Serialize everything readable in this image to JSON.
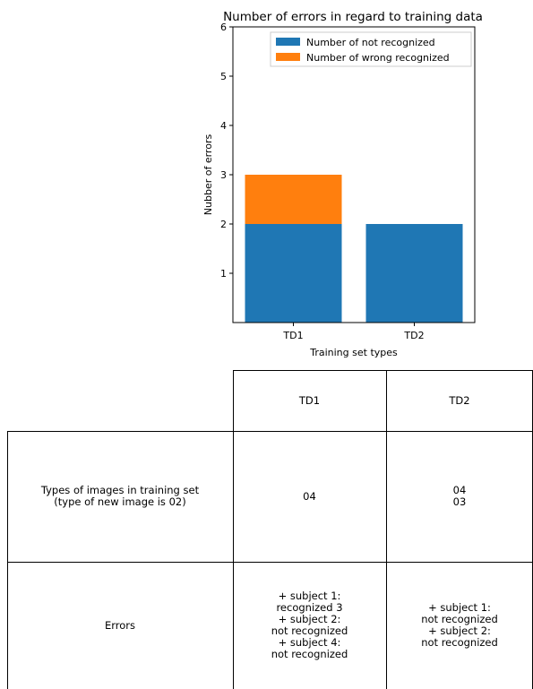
{
  "chart_data": {
    "type": "bar",
    "stacked": true,
    "title": "Number of errors in regard to training data",
    "xlabel": "Training set types",
    "ylabel": "Nubber of errors",
    "categories": [
      "TD1",
      "TD2"
    ],
    "series": [
      {
        "name": "Number of not recognized",
        "values": [
          2,
          2
        ],
        "color": "#1f77b4"
      },
      {
        "name": "Number of wrong recognized",
        "values": [
          1,
          0
        ],
        "color": "#ff7f0e"
      }
    ],
    "ylim": [
      0,
      6
    ],
    "yticks": [
      "1",
      "2",
      "3",
      "4",
      "5",
      "6"
    ],
    "legend_position": "top-right",
    "grid": false
  },
  "table": {
    "headers": [
      "TD1",
      "TD2"
    ],
    "rows": [
      {
        "label": "Types of images in training set\n(type of new image is 02)",
        "cells": [
          "04",
          "04\n03"
        ]
      },
      {
        "label": "Errors",
        "cells": [
          "+ subject 1:\nrecognized  3\n+ subject 2:\nnot recognized\n+ subject 4:\nnot recognized",
          "+ subject 1:\nnot recognized\n+ subject 2:\nnot recognized"
        ]
      }
    ]
  }
}
